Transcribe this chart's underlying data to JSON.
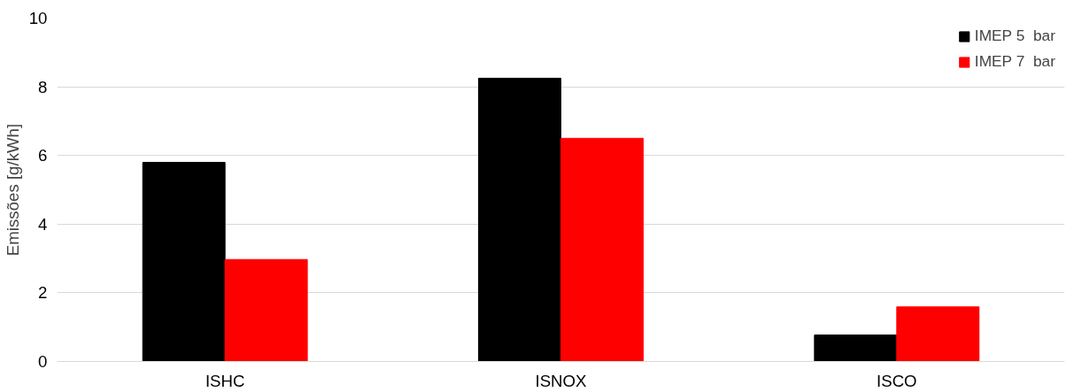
{
  "chart_data": {
    "type": "bar",
    "ylabel": "Emissões [g/kWh]",
    "categories": [
      "ISHC",
      "ISNOX",
      "ISCO"
    ],
    "series": [
      {
        "name": "IMEP 5  bar",
        "color": "#000000",
        "values": [
          5.8,
          8.25,
          0.77
        ]
      },
      {
        "name": "IMEP 7  bar",
        "color": "#ff0000",
        "values": [
          2.97,
          6.5,
          1.59
        ]
      }
    ],
    "ylim": [
      0,
      10
    ],
    "yticks": [
      0,
      2,
      4,
      6,
      8,
      10
    ],
    "grid": "y",
    "legend": "top right"
  }
}
